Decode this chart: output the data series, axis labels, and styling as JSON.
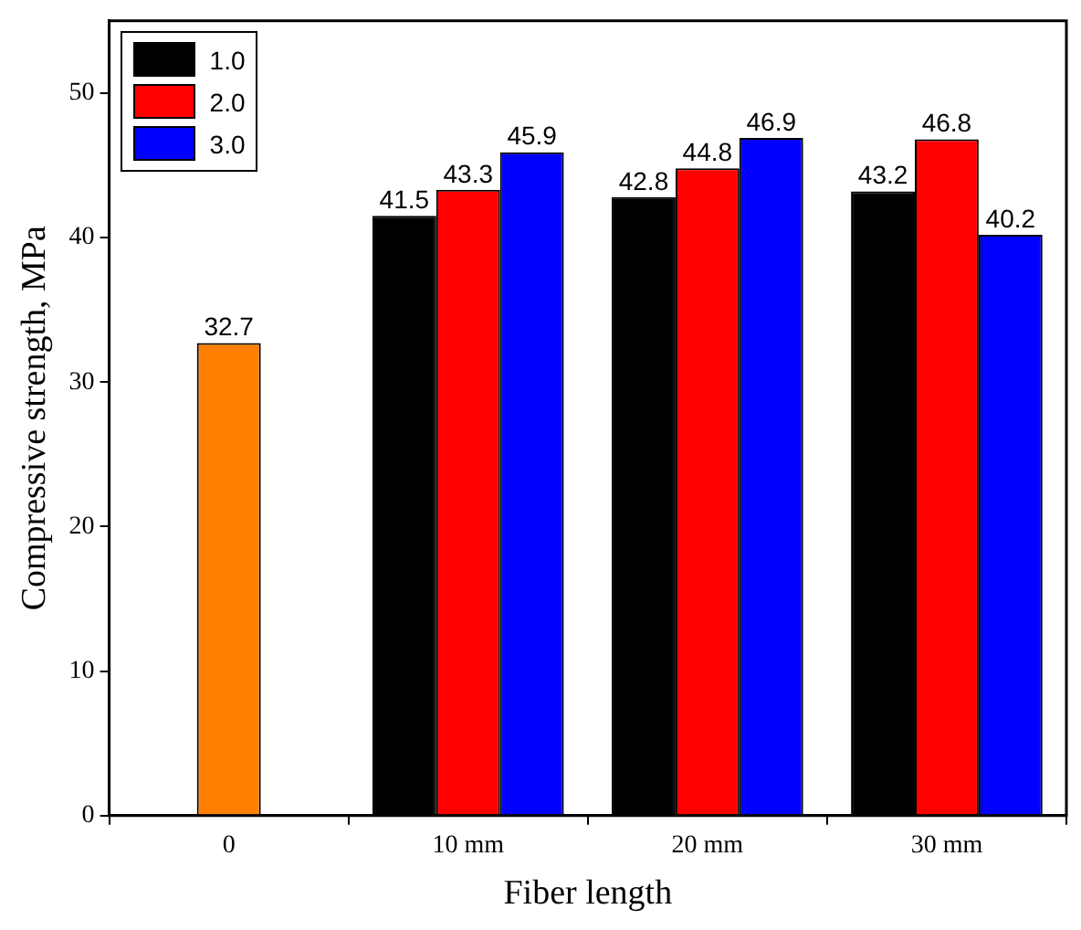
{
  "chart_data": {
    "type": "bar",
    "xlabel": "Fiber length",
    "ylabel": "Compressive strength, MPa",
    "categories": [
      "0",
      "10 mm",
      "20 mm",
      "30 mm"
    ],
    "series": [
      {
        "color": "#ff8000",
        "values": [
          32.7,
          null,
          null,
          null
        ]
      },
      {
        "name": "1.0",
        "color": "#000000",
        "values": [
          null,
          41.5,
          42.8,
          43.2
        ]
      },
      {
        "name": "2.0",
        "color": "#ff0000",
        "values": [
          null,
          43.3,
          44.8,
          46.8
        ]
      },
      {
        "name": "3.0",
        "color": "#0000ff",
        "values": [
          null,
          45.9,
          46.9,
          40.2
        ]
      }
    ],
    "ylim": [
      0,
      55
    ],
    "yticks": [
      0,
      10,
      20,
      30,
      40,
      50
    ],
    "grid": false,
    "legend": "top left",
    "data_labels": true
  }
}
